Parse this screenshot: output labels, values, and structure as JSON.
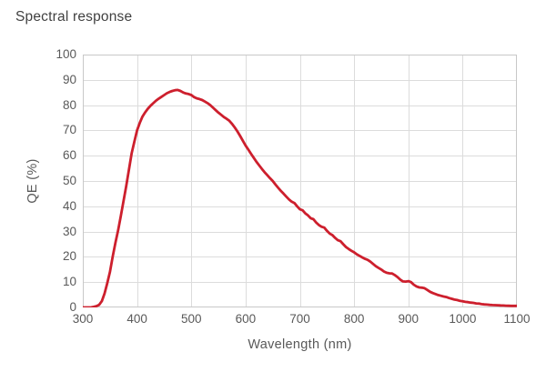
{
  "title": "Spectral response",
  "colors": {
    "curve": "#cd1f2d",
    "grid": "#dcdcdc",
    "plot_border": "#c8c8c8",
    "tick_text": "#595959",
    "title_text": "#414141"
  },
  "chart_data": {
    "type": "line",
    "title": "Spectral response",
    "xlabel": "Wavelength (nm)",
    "ylabel": "QE (%)",
    "xlim": [
      300,
      1100
    ],
    "ylim": [
      0,
      100
    ],
    "x_ticks": [
      300,
      400,
      500,
      600,
      700,
      800,
      900,
      1000,
      1100
    ],
    "y_ticks": [
      0,
      10,
      20,
      30,
      40,
      50,
      60,
      70,
      80,
      90,
      100
    ],
    "grid": true,
    "legend": "none",
    "series": [
      {
        "name": "QE",
        "color": "#cd1f2d",
        "x": [
          300,
          305,
          310,
          315,
          320,
          325,
          330,
          335,
          340,
          345,
          350,
          355,
          360,
          365,
          370,
          375,
          380,
          385,
          390,
          395,
          400,
          405,
          410,
          415,
          420,
          425,
          430,
          435,
          440,
          445,
          450,
          455,
          460,
          465,
          470,
          475,
          480,
          485,
          490,
          495,
          500,
          505,
          510,
          515,
          520,
          525,
          530,
          535,
          540,
          545,
          550,
          555,
          560,
          565,
          570,
          575,
          580,
          585,
          590,
          595,
          600,
          605,
          610,
          615,
          620,
          625,
          630,
          635,
          640,
          645,
          650,
          655,
          660,
          665,
          670,
          675,
          680,
          685,
          690,
          695,
          700,
          705,
          710,
          715,
          720,
          725,
          730,
          735,
          740,
          745,
          750,
          755,
          760,
          765,
          770,
          775,
          780,
          785,
          790,
          795,
          800,
          805,
          810,
          815,
          820,
          825,
          830,
          835,
          840,
          845,
          850,
          855,
          860,
          865,
          870,
          875,
          880,
          885,
          890,
          895,
          900,
          905,
          910,
          915,
          920,
          925,
          930,
          935,
          940,
          945,
          950,
          955,
          960,
          965,
          970,
          975,
          980,
          985,
          990,
          995,
          1000,
          1005,
          1010,
          1015,
          1020,
          1025,
          1030,
          1035,
          1040,
          1045,
          1050,
          1055,
          1060,
          1065,
          1070,
          1075,
          1080,
          1085,
          1090,
          1095,
          1100
        ],
        "y": [
          0,
          0,
          0,
          0,
          0.2,
          0.5,
          1,
          2.5,
          5.5,
          9.5,
          14,
          20,
          25.5,
          30.5,
          36,
          42,
          48,
          54.5,
          61,
          65.5,
          70,
          73,
          75.5,
          77.2,
          78.6,
          79.8,
          80.8,
          81.8,
          82.6,
          83.3,
          84,
          84.7,
          85.2,
          85.6,
          85.9,
          86,
          85.6,
          85,
          84.6,
          84.4,
          84,
          83.2,
          82.7,
          82.4,
          82,
          81.4,
          80.8,
          80,
          79,
          78,
          77,
          76.2,
          75.3,
          74.6,
          73.8,
          72.6,
          71.2,
          69.6,
          67.8,
          65.9,
          64,
          62.4,
          60.8,
          59.2,
          57.6,
          56.2,
          54.8,
          53.5,
          52.3,
          51.1,
          50,
          48.6,
          47.3,
          46.1,
          45,
          43.8,
          42.7,
          41.8,
          41.3,
          40,
          38.8,
          38.4,
          37.2,
          36.4,
          35.3,
          34.9,
          33.6,
          32.6,
          31.9,
          31.6,
          30.3,
          29.2,
          28.6,
          27.5,
          26.6,
          26.2,
          25,
          23.9,
          23.1,
          22.4,
          21.8,
          21,
          20.4,
          19.8,
          19.2,
          18.8,
          18.1,
          17.2,
          16.3,
          15.6,
          15,
          14.2,
          13.7,
          13.5,
          13.4,
          12.8,
          12,
          11,
          10.3,
          10.2,
          10.4,
          10,
          9,
          8.3,
          7.9,
          7.8,
          7.6,
          6.9,
          6.2,
          5.7,
          5.3,
          4.9,
          4.6,
          4.3,
          4.1,
          3.7,
          3.4,
          3.1,
          2.9,
          2.6,
          2.4,
          2.2,
          2.1,
          1.9,
          1.8,
          1.6,
          1.5,
          1.3,
          1.2,
          1.1,
          1,
          0.95,
          0.9,
          0.85,
          0.8,
          0.75,
          0.7,
          0.65,
          0.6,
          0.6,
          0.6
        ]
      }
    ]
  }
}
